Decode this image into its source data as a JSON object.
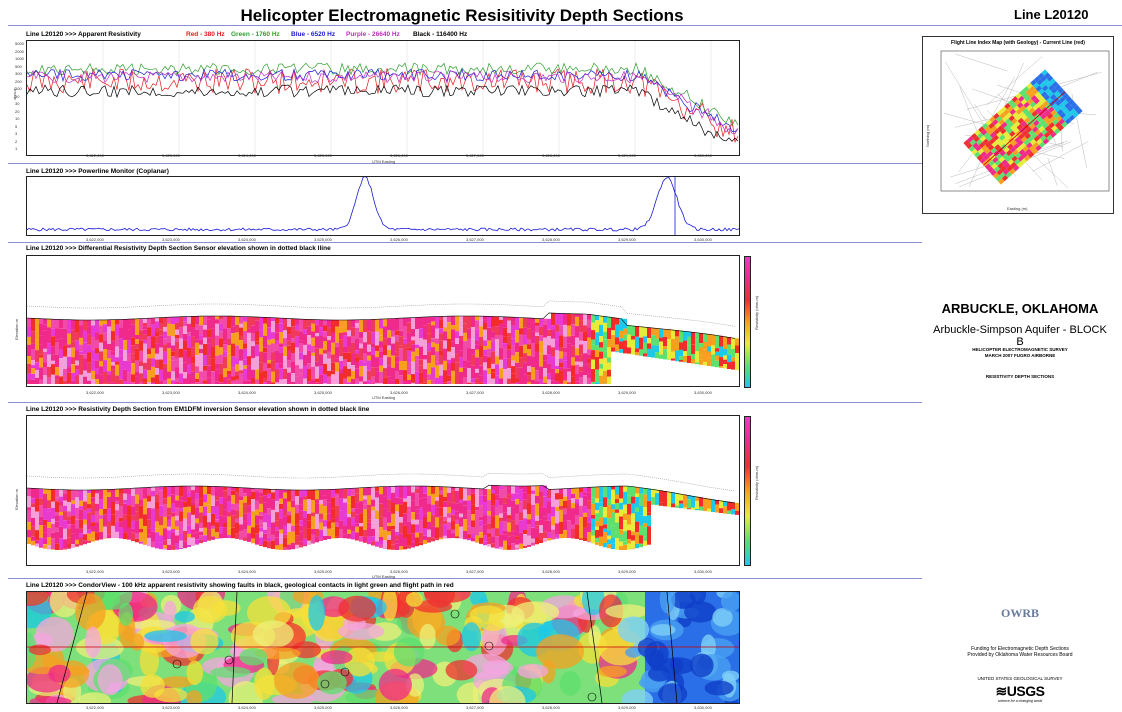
{
  "header": {
    "title": "Helicopter Electromagnetic Resisitivity Depth Sections",
    "line_id": "Line   L20120"
  },
  "panel1": {
    "title": "Line   L20120 >>>  Apparent Resistivity",
    "legend": [
      {
        "label": "Red - 380 Hz",
        "color": "#e41a1c"
      },
      {
        "label": "Green - 1760 Hz",
        "color": "#2e9e2e"
      },
      {
        "label": "Blue - 6520 Hz",
        "color": "#1a1ad6"
      },
      {
        "label": "Purple - 26640 Hz",
        "color": "#c02ac0"
      },
      {
        "label": "Black - 116400 Hz",
        "color": "#000000"
      }
    ],
    "y_label": "ohm-m",
    "x_label": "UTM Easting",
    "y_ticks": [
      "5000",
      "2000",
      "1000",
      "500",
      "300",
      "200",
      "100",
      "50",
      "30",
      "20",
      "10",
      "5",
      "3",
      "2",
      "1"
    ]
  },
  "panel2": {
    "title": "Line   L20120 >>>  Powerline Monitor (Coplanar)"
  },
  "panel3": {
    "title": "Line   L20120 >>>  Differential Resistivity Depth Section   Sensor elevation shown in dotted black lline",
    "y_label": "Elevation m",
    "x_label": "UTM Easting",
    "cb_label": "Resistivity (ohm-m)"
  },
  "panel4": {
    "title": "Line   L20120 >>>  Resistivity Depth Section from EM1DFM inversion    Sensor elevation shown in dotted black line",
    "y_label": "Elevation m",
    "x_label": "UTM Easting",
    "cb_label": "Resistivity (ohm-m)"
  },
  "panel5": {
    "title": "Line   L20120 >>>  CondorView - 100 kHz apparent resistivity showing faults in black, geological contacts in light green and flight path in red"
  },
  "x_ticks": [
    "3,622,000",
    "3,623,000",
    "3,624,000",
    "3,625,000",
    "3,626,000",
    "3,627,000",
    "3,628,000",
    "3,629,000",
    "3,630,000"
  ],
  "map": {
    "title": "Flight Line Index Map (with Geology) - Current Line (red)",
    "x_label": "Easting (m)",
    "y_label": "Northing (m)"
  },
  "right": {
    "title": "ARBUCKLE, OKLAHOMA",
    "subtitle": "Arbuckle-Simpson Aquifer - BLOCK B",
    "survey_line1": "HELICOPTER ELECTROMAGNETIC SURVEY",
    "survey_line2": "MARCH 2007 FUGRO AIRBORNE",
    "sections": "RESISTIVITY DEPTH SECTIONS",
    "owrb": "OWRB",
    "funding1": "Funding for Electromagnetic Depth Sections",
    "funding2": "Provided by Oklahoma Water Resources Board",
    "usgs_name": "UNITED STATES GEOLOGICAL SURVEY",
    "usgs_logo": "≋USGS",
    "usgs_tag": "science for a changing world"
  }
}
